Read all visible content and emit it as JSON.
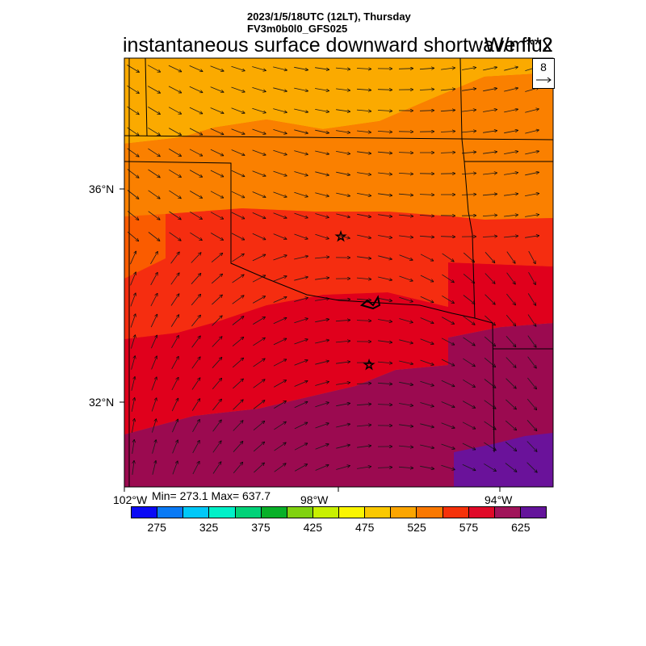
{
  "header": {
    "datetime": "2023/1/5/18UTC (12LT), Thursday",
    "model": "FV3m0b0l0_GFS025",
    "title": "instantaneous surface downward shortwave flux",
    "units": "W/m**2"
  },
  "map": {
    "lat_labels": [
      "36°N",
      "32°N"
    ],
    "lon_labels": [
      "102°W",
      "98°W",
      "94°W"
    ],
    "lat_range": [
      30.5,
      38.5
    ],
    "lon_range": [
      -102,
      -94
    ],
    "vector_reference": "8",
    "stats": {
      "min": 273.1,
      "max": 637.7,
      "text": "Min= 273.1 Max= 637.7"
    },
    "field_bands": [
      {
        "level": "500-525",
        "color": "#fbaa00"
      },
      {
        "level": "525-550",
        "color": "#fa8000"
      },
      {
        "level": "550-575",
        "color": "#fa5c00"
      },
      {
        "level": "575-600",
        "color": "#f52d10"
      },
      {
        "level": "600-625",
        "color": "#e0001c"
      },
      {
        "level": "625-650",
        "color": "#9b0a50"
      },
      {
        "level": "650+",
        "color": "#6a129a"
      }
    ]
  },
  "colorbar": {
    "colors": [
      "#0a0af5",
      "#0a7af5",
      "#00c8f8",
      "#00f0c8",
      "#00d278",
      "#08b028",
      "#80d210",
      "#c8f000",
      "#faf500",
      "#fac800",
      "#fba500",
      "#fa7800",
      "#f5320a",
      "#e00a28",
      "#a0145a",
      "#64149b"
    ],
    "tick_labels": [
      "275",
      "325",
      "375",
      "425",
      "475",
      "525",
      "575",
      "625"
    ]
  }
}
